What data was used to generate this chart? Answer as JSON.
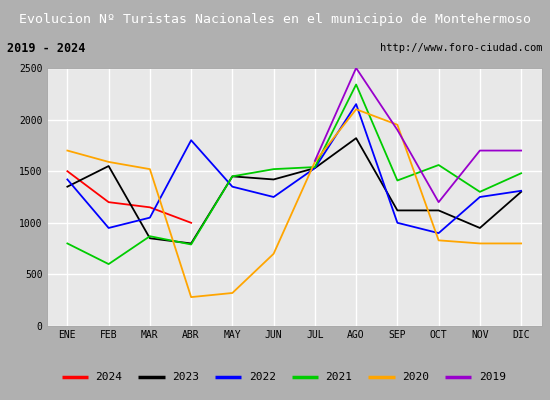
{
  "title": "Evolucion Nº Turistas Nacionales en el municipio de Montehermoso",
  "subtitle_left": "2019 - 2024",
  "subtitle_right": "http://www.foro-ciudad.com",
  "months": [
    "ENE",
    "FEB",
    "MAR",
    "ABR",
    "MAY",
    "JUN",
    "JUL",
    "AGO",
    "SEP",
    "OCT",
    "NOV",
    "DIC"
  ],
  "series": {
    "2024": {
      "color": "#ff0000",
      "data": [
        1500,
        1200,
        1150,
        1000,
        null,
        null,
        null,
        null,
        null,
        null,
        null,
        null
      ]
    },
    "2023": {
      "color": "#000000",
      "data": [
        1350,
        1550,
        850,
        800,
        1450,
        1420,
        1530,
        1820,
        1120,
        1120,
        950,
        1300
      ]
    },
    "2022": {
      "color": "#0000ff",
      "data": [
        1420,
        950,
        1050,
        1800,
        1350,
        1250,
        1530,
        2150,
        1000,
        900,
        1250,
        1310
      ]
    },
    "2021": {
      "color": "#00cc00",
      "data": [
        800,
        600,
        870,
        790,
        1450,
        1520,
        1540,
        2340,
        1410,
        1560,
        1300,
        1480
      ]
    },
    "2020": {
      "color": "#ffa500",
      "data": [
        1700,
        1590,
        1520,
        280,
        320,
        700,
        1590,
        2100,
        1950,
        830,
        800,
        800
      ]
    },
    "2019": {
      "color": "#9900cc",
      "data": [
        null,
        null,
        null,
        null,
        null,
        null,
        1600,
        2500,
        1900,
        1200,
        1700,
        1700
      ]
    }
  },
  "ylim": [
    0,
    2500
  ],
  "yticks": [
    0,
    500,
    1000,
    1500,
    2000,
    2500
  ],
  "title_bgcolor": "#4472b8",
  "title_fgcolor": "#ffffff",
  "plot_bgcolor": "#e8e8e8",
  "sub_bgcolor": "#dcdcdc",
  "grid_color": "#ffffff",
  "legend_order": [
    "2024",
    "2023",
    "2022",
    "2021",
    "2020",
    "2019"
  ],
  "title_fontsize": 9.5,
  "tick_fontsize": 7,
  "legend_fontsize": 8
}
